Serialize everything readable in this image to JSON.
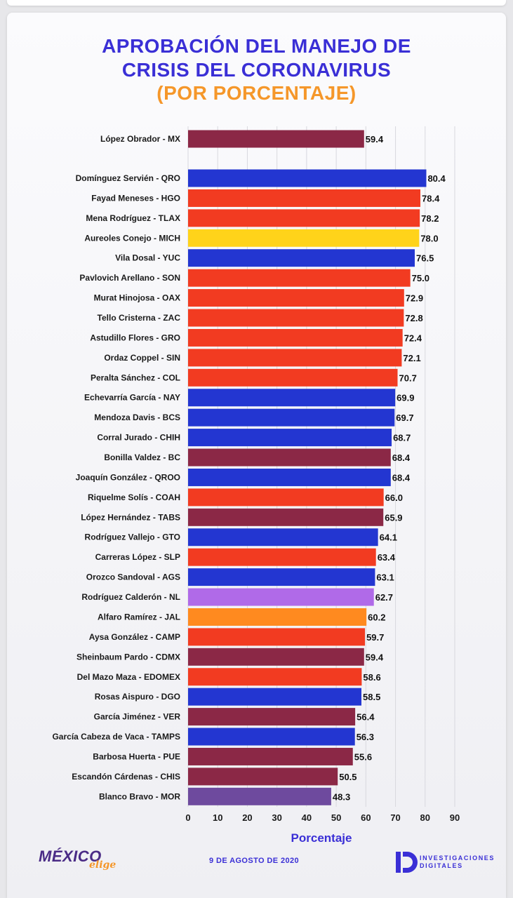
{
  "title": {
    "line1": "APROBACIÓN DEL MANEJO DE",
    "line2": "CRISIS DEL CORONAVIRUS",
    "line3": "(POR PORCENTAJE)"
  },
  "footer": {
    "brand_main": "MÉXICO",
    "brand_sub": "elige",
    "date": "9 DE AGOSTO DE 2020",
    "id_line1": "INVESTIGACIONES",
    "id_line2": "DIGITALES",
    "id_logo_letter": "D"
  },
  "colors": {
    "title": "#3a2fd6",
    "subtitle": "#f5972a",
    "morena": "#8b2846",
    "pan": "#2336d1",
    "pri": "#f23b21",
    "prd": "#ffd31a",
    "mc": "#ff8a1f",
    "independiente": "#b06ae8",
    "pes": "#6e4a9e"
  },
  "chart_data": {
    "type": "bar",
    "orientation": "horizontal",
    "xlabel": "Porcentaje",
    "xlim": [
      0,
      90
    ],
    "xticks": [
      0,
      10,
      20,
      30,
      40,
      50,
      60,
      70,
      80,
      90
    ],
    "grid": true,
    "categories": [
      "López Obrador - MX",
      "Domínguez Servién - QRO",
      "Fayad Meneses - HGO",
      "Mena Rodríguez - TLAX",
      "Aureoles Conejo - MICH",
      "Vila Dosal - YUC",
      "Pavlovich Arellano - SON",
      "Murat Hinojosa - OAX",
      "Tello Cristerna - ZAC",
      "Astudillo Flores - GRO",
      "Ordaz Coppel - SIN",
      "Peralta Sánchez - COL",
      "Echevarría García - NAY",
      "Mendoza Davis - BCS",
      "Corral Jurado - CHIH",
      "Bonilla Valdez - BC",
      "Joaquín González - QROO",
      "Riquelme Solís - COAH",
      "López Hernández - TABS",
      "Rodríguez Vallejo - GTO",
      "Carreras López - SLP",
      "Orozco Sandoval - AGS",
      "Rodríguez Calderón - NL",
      "Alfaro Ramírez - JAL",
      "Aysa González - CAMP",
      "Sheinbaum Pardo - CDMX",
      "Del Mazo Maza - EDOMEX",
      "Rosas Aispuro - DGO",
      "García Jiménez - VER",
      "García Cabeza de Vaca - TAMPS",
      "Barbosa Huerta - PUE",
      "Escandón Cárdenas - CHIS",
      "Blanco Bravo - MOR"
    ],
    "values": [
      59.4,
      80.4,
      78.4,
      78.2,
      78.0,
      76.5,
      75.0,
      72.9,
      72.8,
      72.4,
      72.1,
      70.7,
      69.9,
      69.7,
      68.7,
      68.4,
      68.4,
      66.0,
      65.9,
      64.1,
      63.4,
      63.1,
      62.7,
      60.2,
      59.7,
      59.4,
      58.6,
      58.5,
      56.4,
      56.3,
      55.6,
      50.5,
      48.3
    ],
    "value_labels": [
      "59.4",
      "80.4",
      "78.4",
      "78.2",
      "78.0",
      "76.5",
      "75.0",
      "72.9",
      "72.8",
      "72.4",
      "72.1",
      "70.7",
      "69.9",
      "69.7",
      "68.7",
      "68.4",
      "68.4",
      "66.0",
      "65.9",
      "64.1",
      "63.4",
      "63.1",
      "62.7",
      "60.2",
      "59.7",
      "59.4",
      "58.6",
      "58.5",
      "56.4",
      "56.3",
      "55.6",
      "50.5",
      "48.3"
    ],
    "bar_colors": [
      "#8b2846",
      "#2336d1",
      "#f23b21",
      "#f23b21",
      "#ffd31a",
      "#2336d1",
      "#f23b21",
      "#f23b21",
      "#f23b21",
      "#f23b21",
      "#f23b21",
      "#f23b21",
      "#2336d1",
      "#2336d1",
      "#2336d1",
      "#8b2846",
      "#2336d1",
      "#f23b21",
      "#8b2846",
      "#2336d1",
      "#f23b21",
      "#2336d1",
      "#b06ae8",
      "#ff8a1f",
      "#f23b21",
      "#8b2846",
      "#f23b21",
      "#2336d1",
      "#8b2846",
      "#2336d1",
      "#8b2846",
      "#8b2846",
      "#6e4a9e"
    ]
  }
}
